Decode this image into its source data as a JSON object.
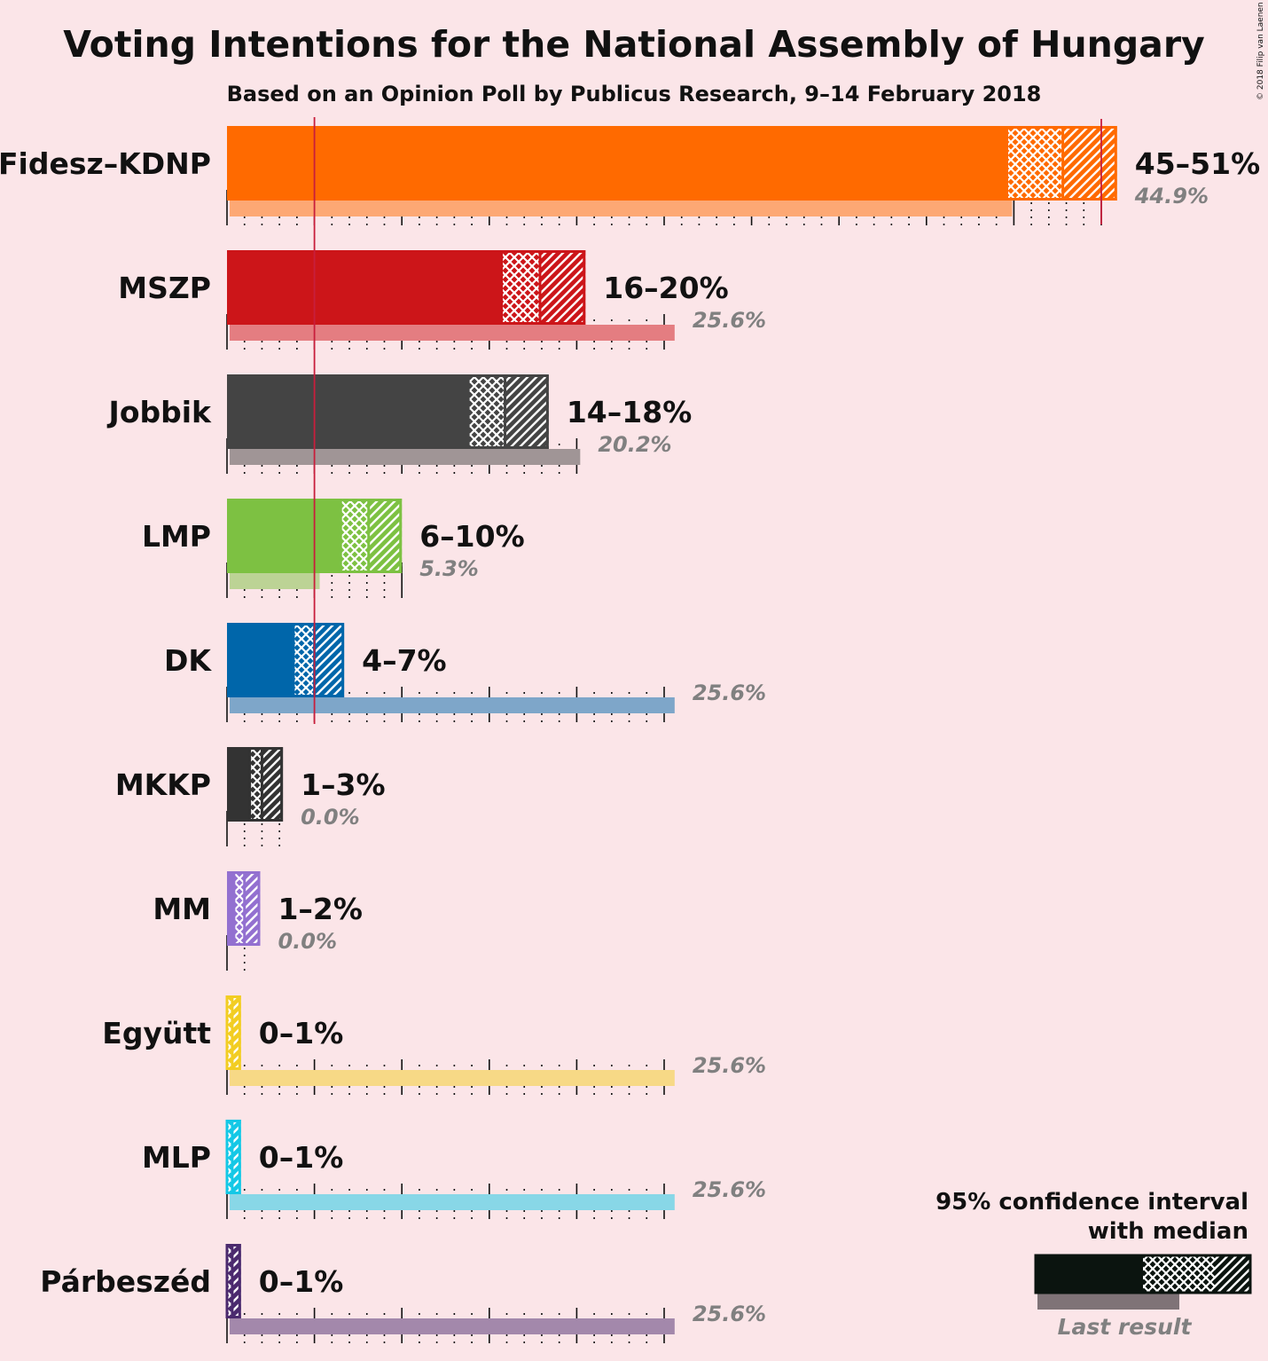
{
  "title": "Voting Intentions for the National Assembly of Hungary",
  "subtitle": "Based on an Opinion Poll by Publicus Research, 9–14 February 2018",
  "copyright": "© 2018 Filip van Laenen",
  "legend": {
    "ci_label": "95% confidence interval",
    "median_label": "with median",
    "last_result_label": "Last result"
  },
  "chart_data": {
    "type": "bar",
    "orientation": "horizontal",
    "unit": "%",
    "xlim": [
      0,
      51
    ],
    "threshold": 5,
    "majority_line": 50,
    "series": [
      {
        "name": "Fidesz–KDNP",
        "color": "#ff6a00",
        "ci_low": 44.6,
        "median": 47.8,
        "ci_high": 50.9,
        "label": "45–51%",
        "last": 44.9,
        "last_label": "44.9%"
      },
      {
        "name": "MSZP",
        "color": "#cc1519",
        "ci_low": 15.7,
        "median": 17.9,
        "ci_high": 20.5,
        "label": "16–20%",
        "last": 25.6,
        "last_label": "25.6%"
      },
      {
        "name": "Jobbik",
        "color": "#444444",
        "ci_low": 13.8,
        "median": 15.9,
        "ci_high": 18.4,
        "label": "14–18%",
        "last": 20.2,
        "last_label": "20.2%"
      },
      {
        "name": "LMP",
        "color": "#7dc142",
        "ci_low": 6.5,
        "median": 8.1,
        "ci_high": 10.0,
        "label": "6–10%",
        "last": 5.3,
        "last_label": "5.3%"
      },
      {
        "name": "DK",
        "color": "#0066aa",
        "ci_low": 3.8,
        "median": 5.0,
        "ci_high": 6.7,
        "label": "4–7%",
        "last": 25.6,
        "last_label": "25.6%"
      },
      {
        "name": "MKKP",
        "color": "#333333",
        "ci_low": 1.3,
        "median": 2.0,
        "ci_high": 3.2,
        "label": "1–3%",
        "last": 0.0,
        "last_label": "0.0%"
      },
      {
        "name": "MM",
        "color": "#9370d0",
        "ci_low": 0.4,
        "median": 1.0,
        "ci_high": 1.9,
        "label": "1–2%",
        "last": 0.0,
        "last_label": "0.0%"
      },
      {
        "name": "Együtt",
        "color": "#f2cd23",
        "ci_low": 0.0,
        "median": 0.3,
        "ci_high": 0.8,
        "label": "0–1%",
        "last": 25.6,
        "last_label": "25.6%"
      },
      {
        "name": "MLP",
        "color": "#14c8e6",
        "ci_low": 0.0,
        "median": 0.3,
        "ci_high": 0.8,
        "label": "0–1%",
        "last": 25.6,
        "last_label": "25.6%"
      },
      {
        "name": "Párbeszéd",
        "color": "#4b2a6e",
        "ci_low": 0.0,
        "median": 0.3,
        "ci_high": 0.8,
        "label": "0–1%",
        "last": 25.6,
        "last_label": "25.6%"
      }
    ]
  }
}
